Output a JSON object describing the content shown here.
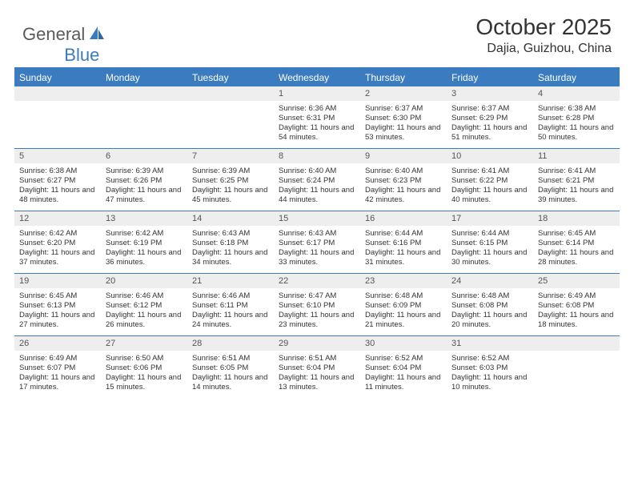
{
  "brand": {
    "part1": "General",
    "part2": "Blue"
  },
  "title": "October 2025",
  "location": "Dajia, Guizhou, China",
  "colors": {
    "accent": "#3b7bbf",
    "header_bg": "#3b7bbf",
    "daynum_bg": "#eeeeee",
    "text": "#333333",
    "logo_gray": "#5a5a5a"
  },
  "dayNames": [
    "Sunday",
    "Monday",
    "Tuesday",
    "Wednesday",
    "Thursday",
    "Friday",
    "Saturday"
  ],
  "weeks": [
    [
      {
        "blank": true
      },
      {
        "blank": true
      },
      {
        "blank": true
      },
      {
        "n": "1",
        "sunrise": "6:36 AM",
        "sunset": "6:31 PM",
        "daylight": "11 hours and 54 minutes."
      },
      {
        "n": "2",
        "sunrise": "6:37 AM",
        "sunset": "6:30 PM",
        "daylight": "11 hours and 53 minutes."
      },
      {
        "n": "3",
        "sunrise": "6:37 AM",
        "sunset": "6:29 PM",
        "daylight": "11 hours and 51 minutes."
      },
      {
        "n": "4",
        "sunrise": "6:38 AM",
        "sunset": "6:28 PM",
        "daylight": "11 hours and 50 minutes."
      }
    ],
    [
      {
        "n": "5",
        "sunrise": "6:38 AM",
        "sunset": "6:27 PM",
        "daylight": "11 hours and 48 minutes."
      },
      {
        "n": "6",
        "sunrise": "6:39 AM",
        "sunset": "6:26 PM",
        "daylight": "11 hours and 47 minutes."
      },
      {
        "n": "7",
        "sunrise": "6:39 AM",
        "sunset": "6:25 PM",
        "daylight": "11 hours and 45 minutes."
      },
      {
        "n": "8",
        "sunrise": "6:40 AM",
        "sunset": "6:24 PM",
        "daylight": "11 hours and 44 minutes."
      },
      {
        "n": "9",
        "sunrise": "6:40 AM",
        "sunset": "6:23 PM",
        "daylight": "11 hours and 42 minutes."
      },
      {
        "n": "10",
        "sunrise": "6:41 AM",
        "sunset": "6:22 PM",
        "daylight": "11 hours and 40 minutes."
      },
      {
        "n": "11",
        "sunrise": "6:41 AM",
        "sunset": "6:21 PM",
        "daylight": "11 hours and 39 minutes."
      }
    ],
    [
      {
        "n": "12",
        "sunrise": "6:42 AM",
        "sunset": "6:20 PM",
        "daylight": "11 hours and 37 minutes."
      },
      {
        "n": "13",
        "sunrise": "6:42 AM",
        "sunset": "6:19 PM",
        "daylight": "11 hours and 36 minutes."
      },
      {
        "n": "14",
        "sunrise": "6:43 AM",
        "sunset": "6:18 PM",
        "daylight": "11 hours and 34 minutes."
      },
      {
        "n": "15",
        "sunrise": "6:43 AM",
        "sunset": "6:17 PM",
        "daylight": "11 hours and 33 minutes."
      },
      {
        "n": "16",
        "sunrise": "6:44 AM",
        "sunset": "6:16 PM",
        "daylight": "11 hours and 31 minutes."
      },
      {
        "n": "17",
        "sunrise": "6:44 AM",
        "sunset": "6:15 PM",
        "daylight": "11 hours and 30 minutes."
      },
      {
        "n": "18",
        "sunrise": "6:45 AM",
        "sunset": "6:14 PM",
        "daylight": "11 hours and 28 minutes."
      }
    ],
    [
      {
        "n": "19",
        "sunrise": "6:45 AM",
        "sunset": "6:13 PM",
        "daylight": "11 hours and 27 minutes."
      },
      {
        "n": "20",
        "sunrise": "6:46 AM",
        "sunset": "6:12 PM",
        "daylight": "11 hours and 26 minutes."
      },
      {
        "n": "21",
        "sunrise": "6:46 AM",
        "sunset": "6:11 PM",
        "daylight": "11 hours and 24 minutes."
      },
      {
        "n": "22",
        "sunrise": "6:47 AM",
        "sunset": "6:10 PM",
        "daylight": "11 hours and 23 minutes."
      },
      {
        "n": "23",
        "sunrise": "6:48 AM",
        "sunset": "6:09 PM",
        "daylight": "11 hours and 21 minutes."
      },
      {
        "n": "24",
        "sunrise": "6:48 AM",
        "sunset": "6:08 PM",
        "daylight": "11 hours and 20 minutes."
      },
      {
        "n": "25",
        "sunrise": "6:49 AM",
        "sunset": "6:08 PM",
        "daylight": "11 hours and 18 minutes."
      }
    ],
    [
      {
        "n": "26",
        "sunrise": "6:49 AM",
        "sunset": "6:07 PM",
        "daylight": "11 hours and 17 minutes."
      },
      {
        "n": "27",
        "sunrise": "6:50 AM",
        "sunset": "6:06 PM",
        "daylight": "11 hours and 15 minutes."
      },
      {
        "n": "28",
        "sunrise": "6:51 AM",
        "sunset": "6:05 PM",
        "daylight": "11 hours and 14 minutes."
      },
      {
        "n": "29",
        "sunrise": "6:51 AM",
        "sunset": "6:04 PM",
        "daylight": "11 hours and 13 minutes."
      },
      {
        "n": "30",
        "sunrise": "6:52 AM",
        "sunset": "6:04 PM",
        "daylight": "11 hours and 11 minutes."
      },
      {
        "n": "31",
        "sunrise": "6:52 AM",
        "sunset": "6:03 PM",
        "daylight": "11 hours and 10 minutes."
      },
      {
        "blank": true
      }
    ]
  ],
  "labels": {
    "sunrise": "Sunrise:",
    "sunset": "Sunset:",
    "daylight": "Daylight:"
  }
}
